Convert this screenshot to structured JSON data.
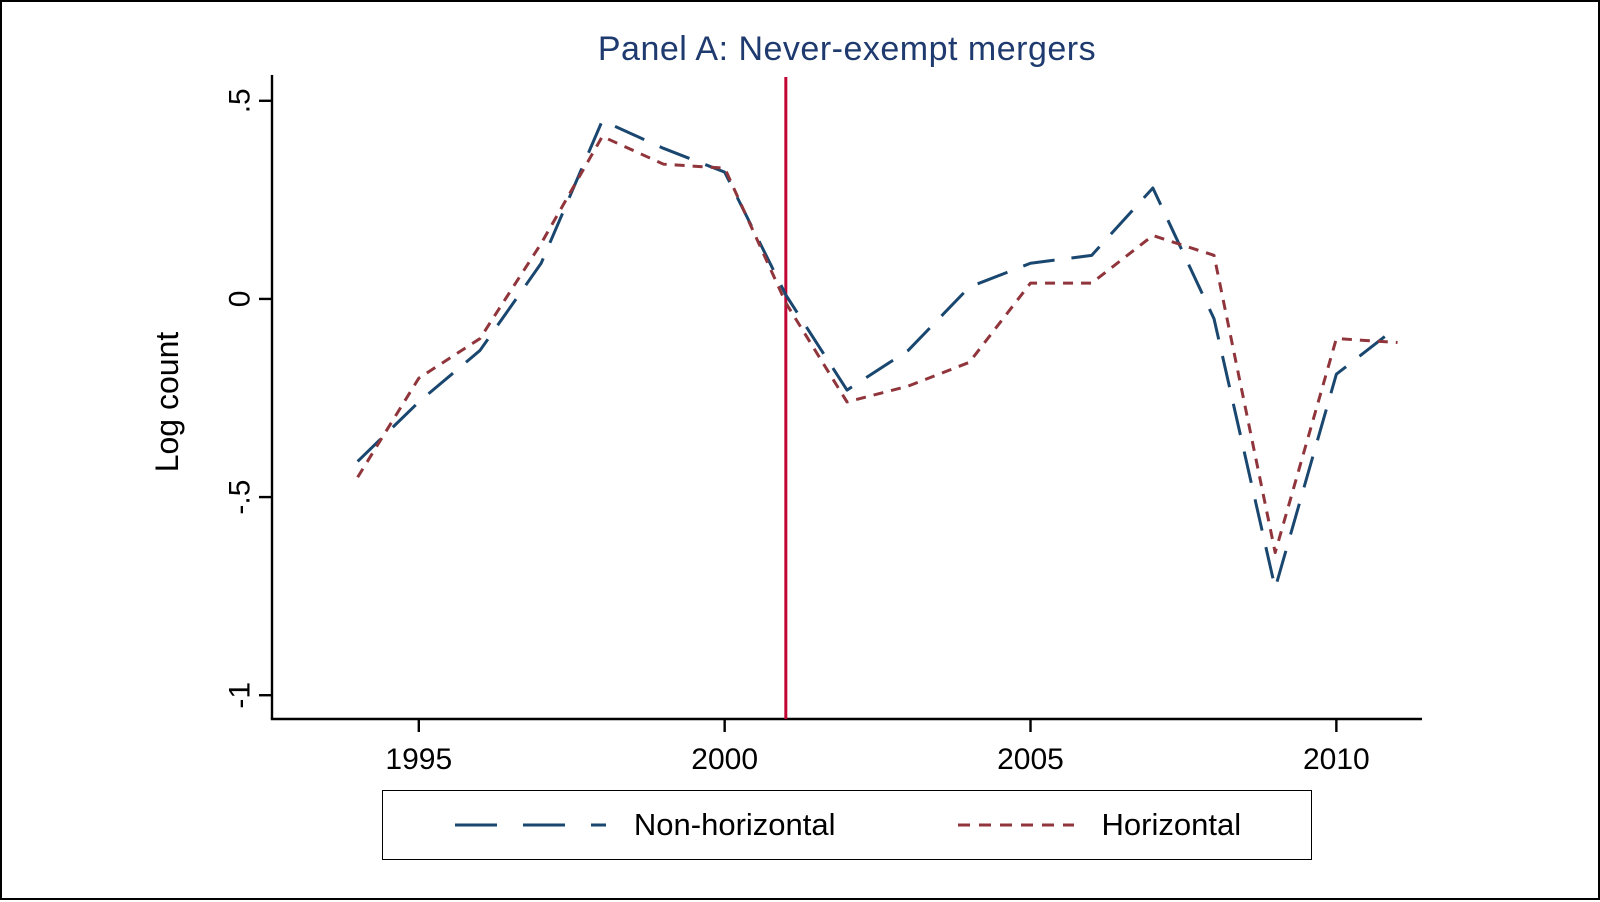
{
  "window": {
    "background": "#ffffff",
    "border_color": "#000000"
  },
  "chart_data": {
    "type": "line",
    "title": "Panel A: Never-exempt mergers",
    "title_color": "#1e3a6e",
    "xlabel": "",
    "ylabel": "Log count",
    "axis_color": "#000000",
    "grid": false,
    "legend_position": "bottom",
    "xlim": [
      1992.6,
      2011.4
    ],
    "ylim": [
      -1.06,
      0.56
    ],
    "x_ticks": {
      "values": [
        1995,
        2000,
        2005,
        2010
      ],
      "labels": [
        "1995",
        "2000",
        "2005",
        "2010"
      ]
    },
    "y_ticks": {
      "values": [
        0.5,
        0,
        -0.5,
        -1
      ],
      "labels": [
        ".5",
        "0",
        "-.5",
        "-1"
      ]
    },
    "x": [
      1994,
      1995,
      1996,
      1997,
      1998,
      1999,
      2000,
      2001,
      2002,
      2003,
      2004,
      2005,
      2006,
      2007,
      2008,
      2009,
      2010,
      2011
    ],
    "series": [
      {
        "name": "Non-horizontal",
        "color": "#1a476f",
        "dash": "long",
        "values": [
          -0.41,
          -0.26,
          -0.13,
          0.09,
          0.45,
          0.38,
          0.32,
          0.01,
          -0.23,
          -0.13,
          0.03,
          0.09,
          0.11,
          0.28,
          -0.05,
          -0.73,
          -0.19,
          -0.07
        ]
      },
      {
        "name": "Horizontal",
        "color": "#90353b",
        "dash": "short",
        "values": [
          -0.45,
          -0.2,
          -0.1,
          0.14,
          0.41,
          0.34,
          0.33,
          -0.01,
          -0.26,
          -0.22,
          -0.16,
          0.04,
          0.04,
          0.16,
          0.11,
          -0.64,
          -0.1,
          -0.11
        ]
      }
    ],
    "vline": {
      "x": 2001,
      "color": "#c10534"
    }
  }
}
